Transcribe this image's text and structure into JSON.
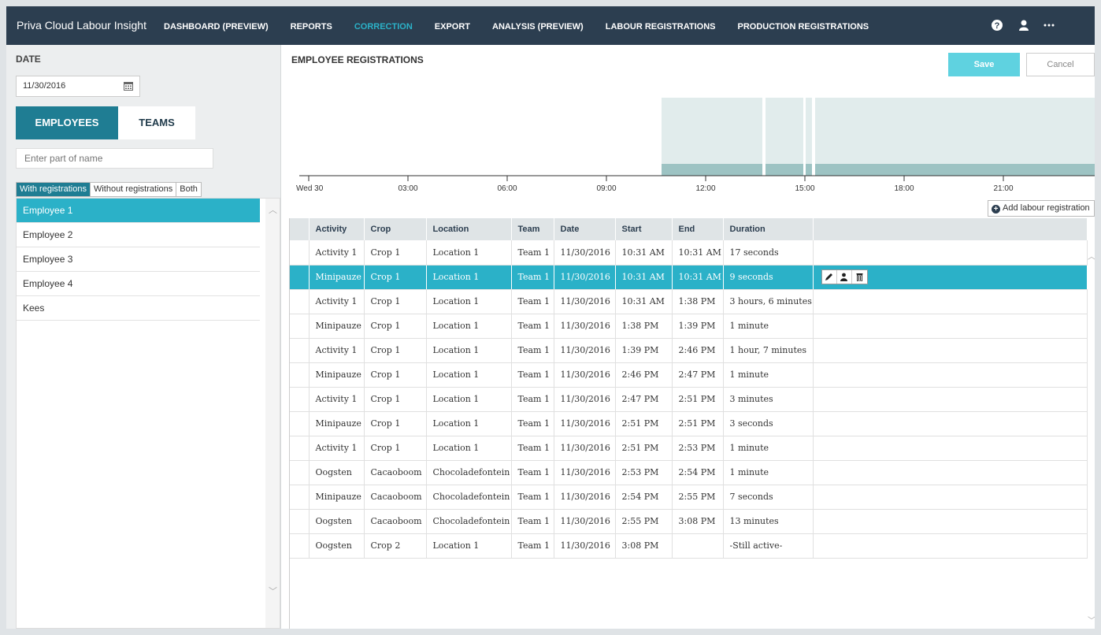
{
  "app": {
    "title": "Priva Cloud Labour Insight"
  },
  "nav": {
    "items": [
      {
        "label": "DASHBOARD (PREVIEW)"
      },
      {
        "label": "REPORTS"
      },
      {
        "label": "CORRECTION",
        "active": true
      },
      {
        "label": "EXPORT"
      },
      {
        "label": "ANALYSIS (PREVIEW)"
      },
      {
        "label": "LABOUR REGISTRATIONS"
      },
      {
        "label": "PRODUCTION REGISTRATIONS"
      }
    ],
    "icons": [
      "help-icon",
      "user-icon",
      "more-icon"
    ]
  },
  "sidebar": {
    "date_label": "DATE",
    "date_value": "11/30/2016",
    "tabs": {
      "employees": "EMPLOYEES",
      "teams": "TEAMS"
    },
    "search_placeholder": "Enter part of name",
    "filters": [
      "With registrations",
      "Without registrations",
      "Both"
    ],
    "employees": [
      "Employee 1",
      "Employee 2",
      "Employee 3",
      "Employee 4",
      "Kees"
    ],
    "selected_employee": "Employee 1"
  },
  "main": {
    "title": "EMPLOYEE REGISTRATIONS",
    "save_label": "Save",
    "cancel_label": "Cancel",
    "add_label": "Add labour registration",
    "timeline": {
      "ticks": [
        "Wed 30",
        "03:00",
        "06:00",
        "09:00",
        "12:00",
        "15:00",
        "18:00",
        "21:00"
      ],
      "colors": {
        "light": "#e1ecec",
        "dark": "#9dc3c3"
      }
    },
    "columns": [
      "Activity",
      "Crop",
      "Location",
      "Team",
      "Date",
      "Start",
      "End",
      "Duration"
    ],
    "rows": [
      [
        "Activity 1",
        "Crop 1",
        "Location 1",
        "Team 1",
        "11/30/2016",
        "10:31 AM",
        "10:31 AM",
        "17 seconds"
      ],
      [
        "Minipauze",
        "Crop 1",
        "Location 1",
        "Team 1",
        "11/30/2016",
        "10:31 AM",
        "10:31 AM",
        "9 seconds"
      ],
      [
        "Activity 1",
        "Crop 1",
        "Location 1",
        "Team 1",
        "11/30/2016",
        "10:31 AM",
        "1:38 PM",
        "3 hours, 6 minutes"
      ],
      [
        "Minipauze",
        "Crop 1",
        "Location 1",
        "Team 1",
        "11/30/2016",
        "1:38 PM",
        "1:39 PM",
        "1 minute"
      ],
      [
        "Activity 1",
        "Crop 1",
        "Location 1",
        "Team 1",
        "11/30/2016",
        "1:39 PM",
        "2:46 PM",
        "1 hour, 7 minutes"
      ],
      [
        "Minipauze",
        "Crop 1",
        "Location 1",
        "Team 1",
        "11/30/2016",
        "2:46 PM",
        "2:47 PM",
        "1 minute"
      ],
      [
        "Activity 1",
        "Crop 1",
        "Location 1",
        "Team 1",
        "11/30/2016",
        "2:47 PM",
        "2:51 PM",
        "3 minutes"
      ],
      [
        "Minipauze",
        "Crop 1",
        "Location 1",
        "Team 1",
        "11/30/2016",
        "2:51 PM",
        "2:51 PM",
        "3 seconds"
      ],
      [
        "Activity 1",
        "Crop 1",
        "Location 1",
        "Team 1",
        "11/30/2016",
        "2:51 PM",
        "2:53 PM",
        "1 minute"
      ],
      [
        "Oogsten",
        "Cacaoboom",
        "Chocoladefontein",
        "Team 1",
        "11/30/2016",
        "2:53 PM",
        "2:54 PM",
        "1 minute"
      ],
      [
        "Minipauze",
        "Cacaoboom",
        "Chocoladefontein",
        "Team 1",
        "11/30/2016",
        "2:54 PM",
        "2:55 PM",
        "7 seconds"
      ],
      [
        "Oogsten",
        "Cacaoboom",
        "Chocoladefontein",
        "Team 1",
        "11/30/2016",
        "2:55 PM",
        "3:08 PM",
        "13 minutes"
      ],
      [
        "Oogsten",
        "Crop 2",
        "Location 1",
        "Team 1",
        "11/30/2016",
        "3:08 PM",
        "",
        "-Still active-"
      ]
    ],
    "selected_row": 1,
    "row_actions": [
      "edit-icon",
      "person-icon",
      "delete-icon"
    ]
  },
  "colors": {
    "nav_bg": "#2c3e50",
    "accent": "#2bb1c8",
    "tab_active": "#1f7d93",
    "save_bg": "#5fd2e0"
  }
}
